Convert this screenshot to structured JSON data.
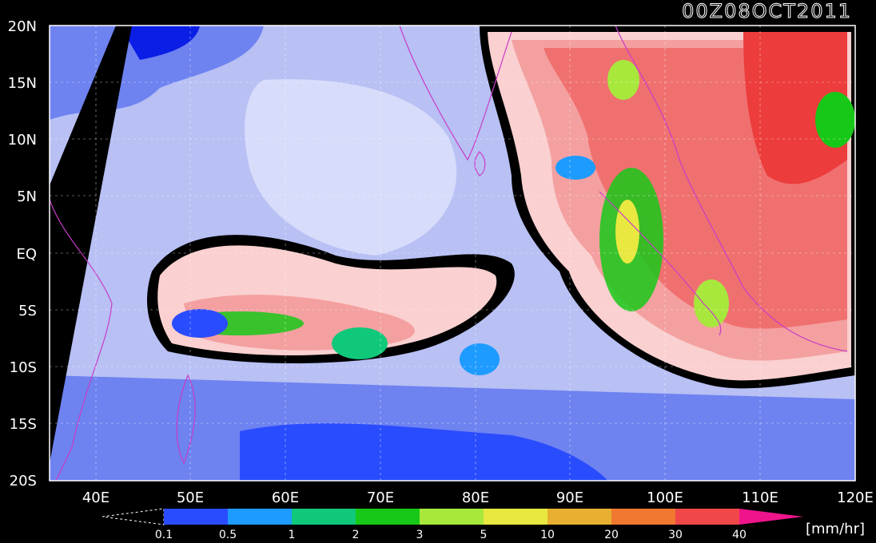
{
  "header": {
    "timestamp": "00Z08OCT2011"
  },
  "axes": {
    "lat_labels": [
      "20N",
      "15N",
      "10N",
      "5N",
      "EQ",
      "5S",
      "10S",
      "15S",
      "20S"
    ],
    "lon_labels": [
      "40E",
      "50E",
      "60E",
      "70E",
      "80E",
      "90E",
      "100E",
      "110E",
      "120E"
    ]
  },
  "colorbar": {
    "labels": [
      "0.1",
      "0.5",
      "1",
      "2",
      "3",
      "5",
      "10",
      "20",
      "30",
      "40"
    ],
    "colors": [
      "#2a4cff",
      "#1e9bff",
      "#10c87a",
      "#18c818",
      "#a8e83c",
      "#e8e840",
      "#e8b030",
      "#f07830",
      "#f04848",
      "#f0148c"
    ],
    "unit": "[mm/hr]"
  },
  "map_colors": {
    "ocean_dry_deep": "#0a1ee6",
    "ocean_dry_mid": "#6e82f0",
    "ocean_dry_light": "#b8c0f4",
    "ocean_dry_pale": "#d6dcfa",
    "moist_light": "#fad0d0",
    "moist_mid": "#f4a0a0",
    "moist_strong": "#f07070",
    "heavy": "#ec3c3c",
    "border": "#c83cc8"
  }
}
